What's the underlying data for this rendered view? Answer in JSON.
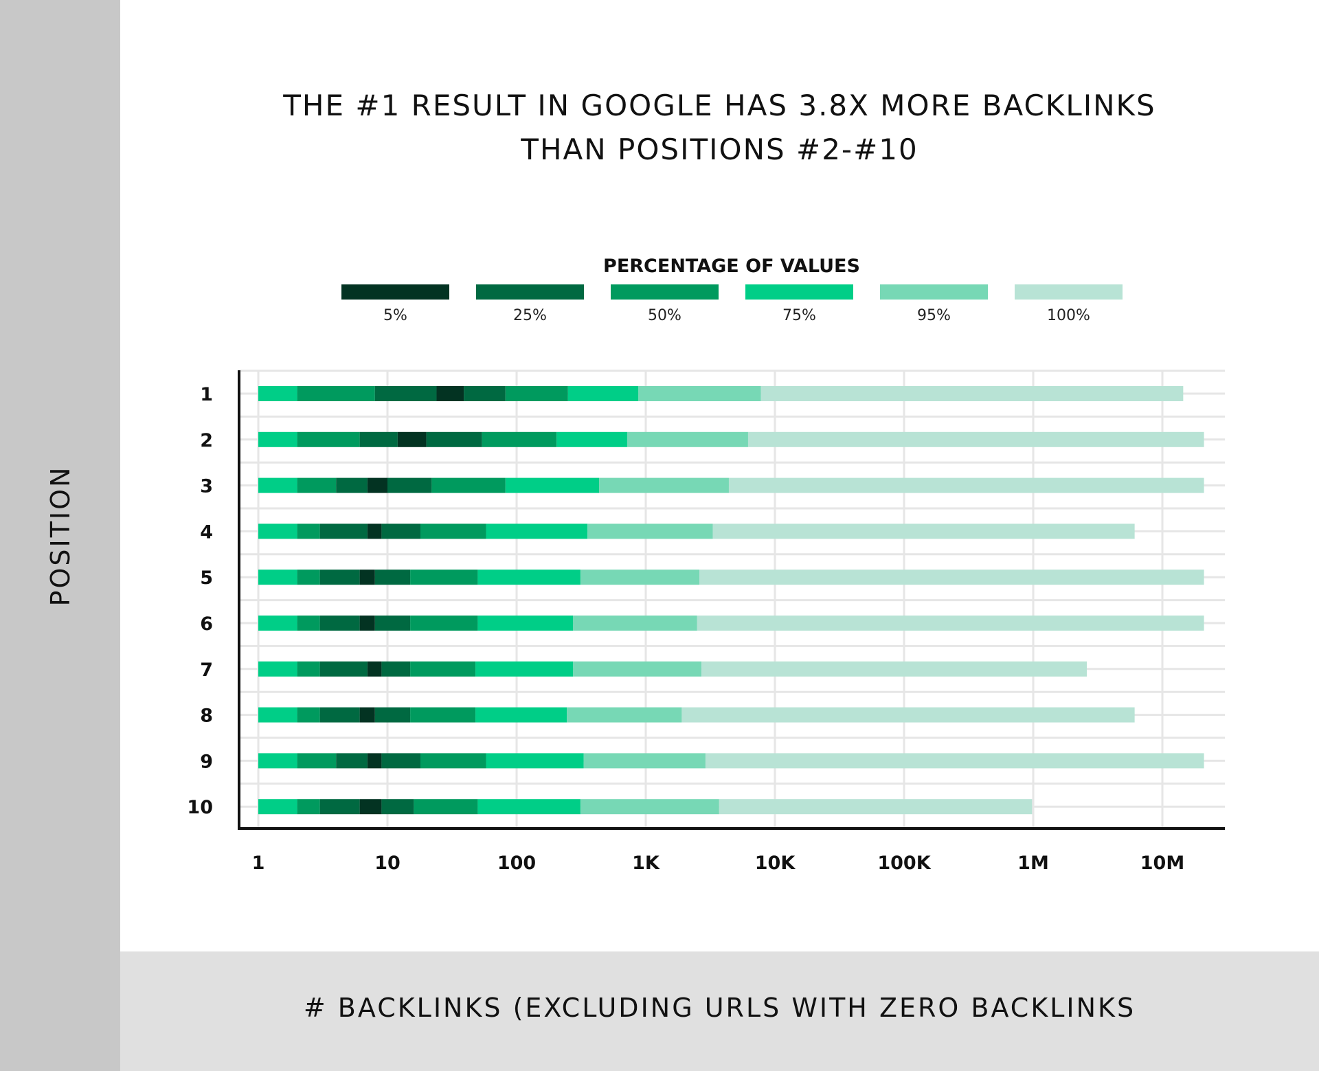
{
  "chart_data": {
    "type": "bar",
    "subtype": "stacked-percentile-bar",
    "title": "THE #1 RESULT IN GOOGLE HAS 3.8X MORE BACKLINKS THAN POSITIONS #2-#10",
    "title_lines": [
      "THE #1 RESULT IN GOOGLE HAS 3.8X MORE BACKLINKS",
      "THAN POSITIONS #2-#10"
    ],
    "xlabel": "# BACKLINKS (EXCLUDING URLS WITH ZERO BACKLINKS",
    "ylabel": "POSITION",
    "x_scale": "log",
    "xlim": [
      1,
      30000000
    ],
    "x_ticks": [
      1,
      10,
      100,
      1000,
      10000,
      100000,
      1000000,
      10000000
    ],
    "x_tick_labels": [
      "1",
      "10",
      "100",
      "1K",
      "10K",
      "100K",
      "1M",
      "10M"
    ],
    "grid": true,
    "legend": {
      "title": "PERCENTAGE OF VALUES",
      "placement": "top",
      "entries": [
        {
          "label": "5%",
          "color": "#033322"
        },
        {
          "label": "25%",
          "color": "#006941"
        },
        {
          "label": "50%",
          "color": "#009a5e"
        },
        {
          "label": "75%",
          "color": "#00ce87"
        },
        {
          "label": "95%",
          "color": "#77d8b5"
        },
        {
          "label": "100%",
          "color": "#b8e3d5"
        }
      ]
    },
    "segment_colors": [
      "#00ce87",
      "#009a5e",
      "#006941",
      "#033322",
      "#006941",
      "#009a5e",
      "#00ce87",
      "#77d8b5",
      "#b8e3d5"
    ],
    "categories": [
      "1",
      "2",
      "3",
      "4",
      "5",
      "6",
      "7",
      "8",
      "9",
      "10"
    ],
    "rows": [
      {
        "position": "1",
        "breakpoints": [
          1,
          2,
          8,
          24,
          39,
          82,
          250,
          877,
          7800,
          14500000
        ]
      },
      {
        "position": "2",
        "breakpoints": [
          1,
          2,
          6.1,
          12,
          20,
          54,
          204,
          718,
          6200,
          21000000
        ]
      },
      {
        "position": "3",
        "breakpoints": [
          1,
          2,
          4,
          7,
          10,
          22,
          82,
          435,
          4400,
          21000000
        ]
      },
      {
        "position": "4",
        "breakpoints": [
          1,
          2,
          3,
          7,
          9,
          18,
          58,
          354,
          3300,
          6100000
        ]
      },
      {
        "position": "5",
        "breakpoints": [
          1,
          2,
          3,
          6.1,
          8,
          15,
          50,
          312,
          2600,
          21000000
        ]
      },
      {
        "position": "6",
        "breakpoints": [
          1,
          2,
          3,
          6.1,
          8,
          15,
          50,
          274,
          2500,
          21000000
        ]
      },
      {
        "position": "7",
        "breakpoints": [
          1,
          2,
          3,
          7,
          9,
          15,
          48,
          274,
          2700,
          2600000
        ]
      },
      {
        "position": "8",
        "breakpoints": [
          1,
          2,
          3,
          6.1,
          8,
          15,
          48,
          245,
          1900,
          6100000
        ]
      },
      {
        "position": "9",
        "breakpoints": [
          1,
          2,
          4,
          7,
          9,
          18,
          58,
          331,
          2900,
          21000000
        ]
      },
      {
        "position": "10",
        "breakpoints": [
          1,
          2,
          3,
          6.1,
          9,
          16,
          50,
          312,
          3700,
          980000
        ]
      }
    ]
  }
}
